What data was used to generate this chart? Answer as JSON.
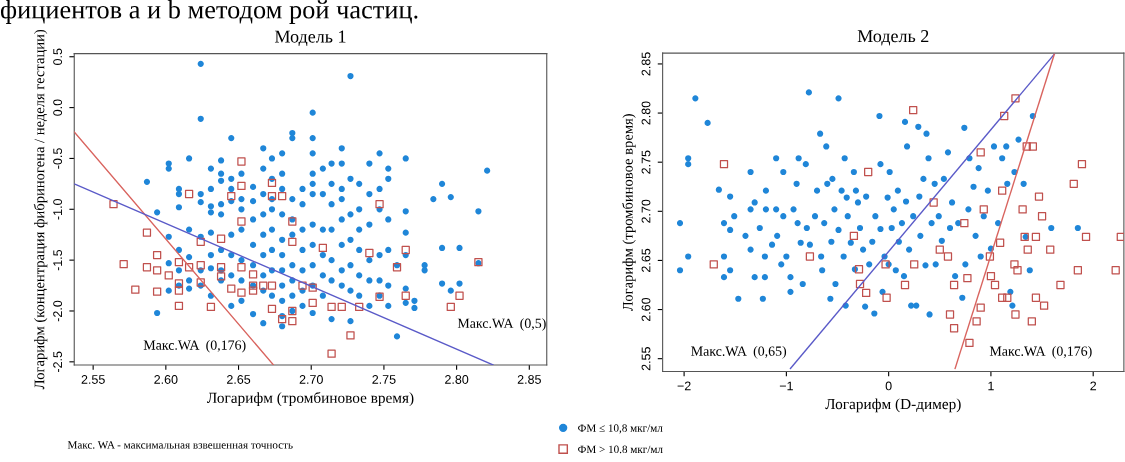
{
  "chart_data": [
    {
      "type": "scatter",
      "title": "Модель 1",
      "xlabel": "Логарифм (тромбиновое время)",
      "ylabel": "Логарифм (концентрация фибриногена / неделя гестации)",
      "xlim": [
        2.537,
        2.862
      ],
      "xticks": [
        2.55,
        {
          "value": 2.6,
          "label": "2.60"
        },
        2.65,
        {
          "value": 2.7,
          "label": "2.70"
        },
        2.75,
        {
          "value": 2.8,
          "label": "2.80"
        },
        2.85
      ],
      "ylim": [
        -2.531,
        0.531
      ],
      "yticks": [
        -2.5,
        {
          "value": -2,
          "label": "-2.0"
        },
        -1.5,
        {
          "value": -1,
          "label": "-1.0"
        },
        -0.5,
        {
          "value": 0,
          "label": "0.0"
        },
        0.5
      ],
      "legend": "bottom",
      "grid": false,
      "annotations": [
        "фициентов a и b методом рой частиц.",
        "Макс. WA - максимальная взвешенная точность",
        "Макс.WA  (0,176)",
        "Макс.WA  (0,5)"
      ],
      "series": [
        {
          "name": "ФМ ≤ 10,8 мкг/мл",
          "type": "scatter",
          "marker": "circle",
          "color": "#1f86d8",
          "x": [
            2.587,
            2.594,
            2.594,
            2.602,
            2.602,
            2.602,
            2.602,
            2.602,
            2.609,
            2.609,
            2.609,
            2.609,
            2.609,
            2.609,
            2.616,
            2.616,
            2.616,
            2.616,
            2.616,
            2.624,
            2.624,
            2.624,
            2.624,
            2.624,
            2.624,
            2.624,
            2.631,
            2.631,
            2.631,
            2.631,
            2.631,
            2.631,
            2.631,
            2.631,
            2.638,
            2.638,
            2.638,
            2.638,
            2.638,
            2.638,
            2.638,
            2.638,
            2.645,
            2.645,
            2.645,
            2.645,
            2.645,
            2.645,
            2.645,
            2.645,
            2.652,
            2.652,
            2.652,
            2.652,
            2.652,
            2.652,
            2.652,
            2.66,
            2.66,
            2.66,
            2.66,
            2.66,
            2.66,
            2.66,
            2.667,
            2.667,
            2.667,
            2.667,
            2.667,
            2.667,
            2.667,
            2.667,
            2.667,
            2.673,
            2.673,
            2.673,
            2.673,
            2.673,
            2.673,
            2.673,
            2.673,
            2.68,
            2.68,
            2.68,
            2.68,
            2.68,
            2.68,
            2.68,
            2.68,
            2.68,
            2.68,
            2.68,
            2.687,
            2.687,
            2.687,
            2.687,
            2.687,
            2.687,
            2.687,
            2.687,
            2.687,
            2.694,
            2.694,
            2.694,
            2.694,
            2.694,
            2.694,
            2.694,
            2.701,
            2.701,
            2.701,
            2.701,
            2.701,
            2.701,
            2.701,
            2.701,
            2.701,
            2.701,
            2.701,
            2.708,
            2.708,
            2.708,
            2.708,
            2.708,
            2.708,
            2.714,
            2.714,
            2.714,
            2.714,
            2.714,
            2.714,
            2.714,
            2.721,
            2.721,
            2.721,
            2.721,
            2.721,
            2.721,
            2.721,
            2.721,
            2.727,
            2.727,
            2.727,
            2.727,
            2.727,
            2.727,
            2.727,
            2.733,
            2.733,
            2.733,
            2.733,
            2.733,
            2.733,
            2.74,
            2.74,
            2.74,
            2.74,
            2.74,
            2.74,
            2.747,
            2.747,
            2.747,
            2.747,
            2.747,
            2.747,
            2.753,
            2.753,
            2.753,
            2.753,
            2.753,
            2.753,
            2.759,
            2.759,
            2.765,
            2.765,
            2.765,
            2.765,
            2.765,
            2.765,
            2.771,
            2.771,
            2.778,
            2.778,
            2.784,
            2.79,
            2.79,
            2.79,
            2.796,
            2.796,
            2.802,
            2.802,
            2.815,
            2.815,
            2.821
          ],
          "values": [
            -0.73,
            -1.03,
            -2.02,
            -0.55,
            -0.6,
            -1.27,
            -1.53,
            -1.8,
            -0.8,
            -0.85,
            -0.98,
            -1.4,
            -1.6,
            -1.75,
            -0.5,
            -1.2,
            -1.47,
            -1.7,
            -1.78,
            0.43,
            -0.11,
            -0.85,
            -0.93,
            -1.27,
            -1.6,
            -1.75,
            -0.6,
            -0.8,
            -0.97,
            -1.03,
            -1.23,
            -1.45,
            -1.58,
            -1.85,
            -0.52,
            -0.65,
            -0.72,
            -0.95,
            -1.05,
            -1.4,
            -1.6,
            -1.7,
            -0.3,
            -0.7,
            -0.8,
            -0.92,
            -1.25,
            -1.45,
            -1.65,
            -1.95,
            -0.65,
            -0.9,
            -1.0,
            -1.2,
            -1.5,
            -1.7,
            -1.9,
            -0.78,
            -0.92,
            -1.1,
            -1.35,
            -1.55,
            -1.75,
            -2.03,
            -0.4,
            -0.6,
            -0.85,
            -1.05,
            -1.25,
            -1.45,
            -1.65,
            -1.8,
            -2.12,
            -0.5,
            -0.7,
            -0.9,
            -1.0,
            -1.2,
            -1.4,
            -1.6,
            -1.85,
            -0.45,
            -0.65,
            -0.8,
            -1.05,
            -1.3,
            -1.45,
            -1.6,
            -1.75,
            -1.9,
            -2.05,
            -2.15,
            -0.25,
            -0.3,
            -0.9,
            -1.1,
            -1.25,
            -1.55,
            -1.7,
            -1.85,
            -2.0,
            -0.8,
            -0.95,
            -1.2,
            -1.4,
            -1.6,
            -1.8,
            -1.95,
            -0.05,
            -0.3,
            -0.45,
            -0.65,
            -0.75,
            -0.85,
            -1.15,
            -1.35,
            -1.55,
            -1.75,
            -2.02,
            -0.6,
            -0.85,
            -1.2,
            -1.45,
            -1.65,
            -1.85,
            -0.55,
            -0.75,
            -0.95,
            -1.2,
            -1.5,
            -1.7,
            -2.08,
            -0.4,
            -0.55,
            -0.8,
            -0.9,
            -1.1,
            -1.35,
            -1.6,
            -1.75,
            0.31,
            -0.7,
            -1.05,
            -1.3,
            -1.55,
            -1.8,
            -2.1,
            -0.75,
            -1.0,
            -1.2,
            -1.4,
            -1.65,
            -1.85,
            -0.55,
            -0.85,
            -1.15,
            -1.5,
            -1.7,
            -1.95,
            -0.45,
            -0.8,
            -1.0,
            -1.45,
            -1.7,
            -1.85,
            -0.6,
            -0.7,
            -1.1,
            -1.4,
            -1.75,
            -1.95,
            -1.55,
            -2.25,
            -0.5,
            -1.02,
            -1.23,
            -1.45,
            -1.78,
            -1.92,
            -1.9,
            -1.97,
            -1.55,
            -1.6,
            -0.9,
            -0.75,
            -1.38,
            -1.73,
            -0.88,
            -1.8,
            -1.38,
            -1.73,
            -1.02,
            -1.53,
            -0.62
          ]
        },
        {
          "name": "ФМ > 10.8 мкг/мл",
          "type": "scatter",
          "marker": "square",
          "color": "#c0504d",
          "x": [
            2.564,
            2.587,
            2.571,
            2.587,
            2.594,
            2.594,
            2.579,
            2.594,
            2.602,
            2.609,
            2.609,
            2.609,
            2.609,
            2.616,
            2.616,
            2.624,
            2.624,
            2.624,
            2.631,
            2.638,
            2.638,
            2.638,
            2.645,
            2.645,
            2.652,
            2.652,
            2.652,
            2.652,
            2.652,
            2.66,
            2.66,
            2.66,
            2.667,
            2.673,
            2.673,
            2.673,
            2.673,
            2.68,
            2.68,
            2.687,
            2.687,
            2.687,
            2.687,
            2.694,
            2.701,
            2.701,
            2.708,
            2.714,
            2.714,
            2.721,
            2.727,
            2.733,
            2.74,
            2.747,
            2.747,
            2.759,
            2.765,
            2.765,
            2.796,
            2.802,
            2.815
          ],
          "values": [
            -0.95,
            -1.23,
            -1.54,
            -1.57,
            -1.45,
            -1.6,
            -1.79,
            -1.81,
            -1.65,
            -1.52,
            -1.73,
            -1.8,
            -1.95,
            -0.85,
            -1.57,
            -1.32,
            -1.55,
            -1.72,
            -1.96,
            -1.29,
            -1.57,
            -1.66,
            -0.87,
            -1.78,
            -0.53,
            -0.77,
            -1.12,
            -1.57,
            -1.82,
            -1.64,
            -1.75,
            -1.8,
            -1.75,
            -0.74,
            -0.87,
            -1.75,
            -1.98,
            -0.87,
            -2.08,
            -1.12,
            -1.32,
            -2.0,
            -2.1,
            -1.75,
            -1.77,
            -1.92,
            -1.38,
            -1.96,
            -2.42,
            -1.96,
            -2.24,
            -1.96,
            -1.43,
            -0.95,
            -1.86,
            -1.57,
            -1.4,
            -1.85,
            -1.96,
            -1.85,
            -1.52
          ]
        },
        {
          "type": "line",
          "marker": "none",
          "color": "#d9645f",
          "x": [
            2.537,
            2.674
          ],
          "values": [
            -0.24,
            -2.53
          ]
        },
        {
          "type": "line",
          "marker": "none",
          "color": "#5a5ac8",
          "x": [
            2.537,
            2.825
          ],
          "values": [
            -0.75,
            -2.53
          ]
        }
      ]
    },
    {
      "type": "scatter",
      "title": "Модель 2",
      "xlabel": "Логарифм (D-димер)",
      "ylabel": "Логарифм (тромбиновое время)",
      "xlim": [
        -2.21,
        2.3
      ],
      "xticks": [
        {
          "value": -2,
          "label": "−2"
        },
        {
          "value": -1,
          "label": "−1"
        },
        0,
        1,
        2
      ],
      "ylim": [
        2.537,
        2.861
      ],
      "yticks": [
        2.55,
        {
          "value": 2.6,
          "label": "2.60"
        },
        2.65,
        {
          "value": 2.7,
          "label": "2.70"
        },
        2.75,
        {
          "value": 2.8,
          "label": "2.80"
        },
        2.85
      ],
      "grid": false,
      "annotations": [
        "Макс.WA  (0,65)",
        "Макс.WA  (0,176)"
      ],
      "series": [
        {
          "type": "scatter",
          "marker": "circle",
          "color": "#1f86d8",
          "x": [
            -2.04,
            -2.04,
            -1.96,
            -1.96,
            -1.96,
            -1.89,
            -1.77,
            -1.66,
            -1.61,
            -1.61,
            -1.61,
            -1.55,
            -1.55,
            -1.55,
            -1.51,
            -1.47,
            -1.4,
            -1.35,
            -1.35,
            -1.35,
            -1.31,
            -1.31,
            -1.26,
            -1.23,
            -1.21,
            -1.21,
            -1.2,
            -1.2,
            -1.14,
            -1.1,
            -1.1,
            -1.09,
            -1.05,
            -1.03,
            -1.03,
            -1.0,
            -0.96,
            -0.96,
            -0.93,
            -0.9,
            -0.89,
            -0.88,
            -0.86,
            -0.84,
            -0.81,
            -0.8,
            -0.78,
            -0.77,
            -0.72,
            -0.7,
            -0.67,
            -0.66,
            -0.65,
            -0.63,
            -0.61,
            -0.6,
            -0.57,
            -0.56,
            -0.55,
            -0.53,
            -0.52,
            -0.49,
            -0.49,
            -0.46,
            -0.44,
            -0.43,
            -0.42,
            -0.41,
            -0.4,
            -0.37,
            -0.34,
            -0.33,
            -0.32,
            -0.3,
            -0.28,
            -0.25,
            -0.23,
            -0.22,
            -0.19,
            -0.16,
            -0.14,
            -0.13,
            -0.09,
            -0.08,
            -0.08,
            -0.06,
            -0.04,
            -0.01,
            0.0,
            0.01,
            0.03,
            0.05,
            0.07,
            0.09,
            0.1,
            0.13,
            0.15,
            0.16,
            0.17,
            0.18,
            0.2,
            0.22,
            0.24,
            0.27,
            0.29,
            0.3,
            0.31,
            0.34,
            0.36,
            0.37,
            0.39,
            0.4,
            0.42,
            0.45,
            0.46,
            0.49,
            0.52,
            0.54,
            0.58,
            0.6,
            0.62,
            0.65,
            0.68,
            0.72,
            0.74,
            0.75,
            0.78,
            0.79,
            0.83,
            0.85,
            0.88,
            0.9,
            0.93,
            0.97,
            1.0,
            1.03,
            1.07,
            1.11,
            1.15,
            1.16,
            1.19,
            1.21,
            1.23,
            1.27,
            1.32,
            1.34,
            1.38,
            1.41,
            1.59,
            1.85
          ],
          "values": [
            2.688,
            2.64,
            2.754,
            2.748,
            2.654,
            2.815,
            2.79,
            2.722,
            2.688,
            2.654,
            2.633,
            2.715,
            2.681,
            2.64,
            2.695,
            2.611,
            2.675,
            2.74,
            2.702,
            2.661,
            2.709,
            2.633,
            2.683,
            2.611,
            2.654,
            2.633,
            2.721,
            2.702,
            2.666,
            2.754,
            2.702,
            2.675,
            2.646,
            2.74,
            2.695,
            2.654,
            2.633,
            2.618,
            2.702,
            2.728,
            2.688,
            2.754,
            2.668,
            2.626,
            2.748,
            2.683,
            2.821,
            2.666,
            2.695,
            2.721,
            2.779,
            2.654,
            2.64,
            2.688,
            2.766,
            2.728,
            2.611,
            2.669,
            2.733,
            2.702,
            2.626,
            2.815,
            2.681,
            2.721,
            2.654,
            2.754,
            2.604,
            2.714,
            2.695,
            2.668,
            2.74,
            2.641,
            2.721,
            2.709,
            2.683,
            2.661,
            2.603,
            2.715,
            2.646,
            2.669,
            2.596,
            2.695,
            2.797,
            2.748,
            2.682,
            2.618,
            2.654,
            2.714,
            2.646,
            2.74,
            2.683,
            2.702,
            2.64,
            2.721,
            2.669,
            2.688,
            2.634,
            2.791,
            2.71,
            2.766,
            2.661,
            2.604,
            2.695,
            2.604,
            2.786,
            2.715,
            2.675,
            2.733,
            2.645,
            2.779,
            2.754,
            2.595,
            2.688,
            2.728,
            2.646,
            2.695,
            2.67,
            2.733,
            2.76,
            2.683,
            2.709,
            2.634,
            2.688,
            2.612,
            2.785,
            2.646,
            2.702,
            2.754,
            2.725,
            2.675,
            2.744,
            2.654,
            2.695,
            2.721,
            2.662,
            2.766,
            2.688,
            2.754,
            2.766,
            2.728,
            2.618,
            2.604,
            2.74,
            2.773,
            2.728,
            2.674,
            2.64,
            2.797,
            2.683,
            2.683
          ]
        },
        {
          "type": "scatter",
          "marker": "square",
          "color": "#c0504d",
          "x": [
            -1.71,
            -1.61,
            -0.77,
            -0.34,
            -0.29,
            -0.28,
            -0.22,
            -0.2,
            -0.03,
            -0.02,
            0.16,
            0.24,
            0.25,
            0.44,
            0.5,
            0.58,
            0.6,
            0.64,
            0.64,
            0.74,
            0.77,
            0.79,
            0.86,
            0.9,
            0.9,
            0.93,
            0.99,
            1.0,
            1.04,
            1.09,
            1.11,
            1.11,
            1.13,
            1.16,
            1.23,
            1.24,
            1.24,
            1.26,
            1.31,
            1.33,
            1.35,
            1.36,
            1.4,
            1.41,
            1.44,
            1.44,
            1.47,
            1.5,
            1.52,
            1.58,
            1.68,
            1.81,
            1.85,
            1.89,
            1.93,
            2.22,
            2.27
          ],
          "values": [
            2.646,
            2.748,
            2.654,
            2.675,
            2.641,
            2.626,
            2.617,
            2.74,
            2.646,
            2.612,
            2.625,
            2.803,
            2.646,
            2.709,
            2.661,
            2.654,
            2.595,
            2.581,
            2.625,
            2.688,
            2.632,
            2.566,
            2.588,
            2.76,
            2.602,
            2.702,
            2.654,
            2.634,
            2.625,
            2.668,
            2.721,
            2.612,
            2.797,
            2.612,
            2.646,
            2.815,
            2.595,
            2.64,
            2.702,
            2.674,
            2.766,
            2.661,
            2.588,
            2.766,
            2.674,
            2.612,
            2.715,
            2.695,
            2.604,
            2.661,
            2.625,
            2.728,
            2.64,
            2.748,
            2.674,
            2.64,
            2.674
          ]
        },
        {
          "type": "line",
          "marker": "none",
          "color": "#5a5ac8",
          "x": [
            -0.96,
            1.62
          ],
          "values": [
            2.54,
            2.86
          ]
        },
        {
          "type": "line",
          "marker": "none",
          "color": "#d9645f",
          "x": [
            0.65,
            1.62
          ],
          "values": [
            2.54,
            2.86
          ]
        }
      ]
    }
  ]
}
